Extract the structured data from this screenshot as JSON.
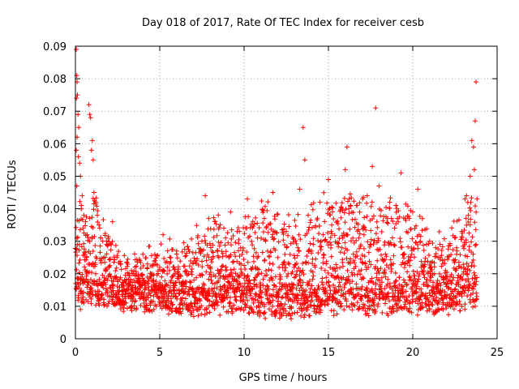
{
  "chart_data": {
    "type": "scatter",
    "title": "Day 018 of 2017, Rate Of TEC Index for receiver cesb",
    "xlabel": "GPS time / hours",
    "ylabel": "ROTI / TECUs",
    "xlim": [
      0,
      25
    ],
    "ylim": [
      0,
      0.09
    ],
    "xticks": [
      0,
      5,
      10,
      15,
      20,
      25
    ],
    "yticks": [
      0,
      0.01,
      0.02,
      0.03,
      0.04,
      0.05,
      0.06,
      0.07,
      0.08,
      0.09
    ],
    "xtick_labels": [
      "0",
      "5",
      "10",
      "15",
      "20",
      "25"
    ],
    "ytick_labels": [
      "0",
      "0.01",
      "0.02",
      "0.03",
      "0.04",
      "0.05",
      "0.06",
      "0.07",
      "0.08",
      "0.09"
    ],
    "grid": true,
    "marker": "plus",
    "marker_color": "#ff0000",
    "points": [
      [
        0.05,
        0.089
      ],
      [
        0.08,
        0.081
      ],
      [
        0.1,
        0.079
      ],
      [
        0.12,
        0.075
      ],
      [
        0.06,
        0.074
      ],
      [
        0.15,
        0.069
      ],
      [
        0.2,
        0.065
      ],
      [
        0.1,
        0.062
      ],
      [
        0.05,
        0.058
      ],
      [
        0.18,
        0.056
      ],
      [
        0.25,
        0.054
      ],
      [
        0.3,
        0.05
      ],
      [
        0.08,
        0.047
      ],
      [
        0.4,
        0.044
      ],
      [
        0.35,
        0.041
      ],
      [
        0.5,
        0.038
      ],
      [
        0.6,
        0.036
      ],
      [
        0.45,
        0.034
      ],
      [
        0.7,
        0.032
      ],
      [
        0.8,
        0.072
      ],
      [
        0.85,
        0.069
      ],
      [
        0.9,
        0.068
      ],
      [
        1.0,
        0.061
      ],
      [
        0.95,
        0.058
      ],
      [
        1.05,
        0.055
      ],
      [
        1.1,
        0.045
      ],
      [
        1.2,
        0.042
      ],
      [
        1.3,
        0.038
      ],
      [
        1.4,
        0.035
      ],
      [
        1.5,
        0.031
      ],
      [
        0.3,
        0.009
      ],
      [
        0.5,
        0.011
      ],
      [
        0.7,
        0.014
      ],
      [
        1.0,
        0.017
      ],
      [
        1.2,
        0.02
      ],
      [
        1.5,
        0.024
      ],
      [
        2.0,
        0.022
      ],
      [
        2.2,
        0.036
      ],
      [
        2.5,
        0.018
      ],
      [
        2.8,
        0.013
      ],
      [
        3.0,
        0.011
      ],
      [
        3.3,
        0.015
      ],
      [
        3.6,
        0.009
      ],
      [
        4.0,
        0.026
      ],
      [
        4.2,
        0.012
      ],
      [
        4.5,
        0.016
      ],
      [
        4.8,
        0.01
      ],
      [
        5.0,
        0.022
      ],
      [
        5.2,
        0.032
      ],
      [
        5.5,
        0.013
      ],
      [
        5.8,
        0.017
      ],
      [
        6.0,
        0.027
      ],
      [
        6.3,
        0.011
      ],
      [
        6.6,
        0.02
      ],
      [
        6.9,
        0.008
      ],
      [
        7.2,
        0.024
      ],
      [
        7.5,
        0.03
      ],
      [
        7.7,
        0.044
      ],
      [
        7.9,
        0.037
      ],
      [
        8.2,
        0.014
      ],
      [
        8.5,
        0.025
      ],
      [
        8.8,
        0.034
      ],
      [
        9.0,
        0.019
      ],
      [
        9.2,
        0.039
      ],
      [
        9.5,
        0.012
      ],
      [
        9.8,
        0.028
      ],
      [
        10.0,
        0.016
      ],
      [
        10.2,
        0.043
      ],
      [
        10.5,
        0.022
      ],
      [
        10.8,
        0.031
      ],
      [
        11.0,
        0.011
      ],
      [
        11.2,
        0.037
      ],
      [
        11.5,
        0.018
      ],
      [
        11.7,
        0.045
      ],
      [
        12.0,
        0.025
      ],
      [
        12.3,
        0.009
      ],
      [
        12.5,
        0.033
      ],
      [
        12.8,
        0.02
      ],
      [
        13.0,
        0.013
      ],
      [
        13.3,
        0.046
      ],
      [
        13.5,
        0.065
      ],
      [
        13.6,
        0.055
      ],
      [
        13.8,
        0.038
      ],
      [
        14.0,
        0.027
      ],
      [
        14.2,
        0.015
      ],
      [
        14.5,
        0.042
      ],
      [
        14.8,
        0.021
      ],
      [
        15.0,
        0.049
      ],
      [
        15.2,
        0.035
      ],
      [
        15.5,
        0.012
      ],
      [
        15.8,
        0.028
      ],
      [
        16.0,
        0.052
      ],
      [
        16.1,
        0.059
      ],
      [
        16.3,
        0.041
      ],
      [
        16.5,
        0.024
      ],
      [
        16.8,
        0.031
      ],
      [
        17.0,
        0.016
      ],
      [
        17.3,
        0.044
      ],
      [
        17.6,
        0.053
      ],
      [
        17.8,
        0.071
      ],
      [
        18.0,
        0.047
      ],
      [
        18.3,
        0.02
      ],
      [
        18.5,
        0.037
      ],
      [
        18.8,
        0.013
      ],
      [
        19.0,
        0.041
      ],
      [
        19.3,
        0.051
      ],
      [
        19.5,
        0.026
      ],
      [
        19.8,
        0.018
      ],
      [
        20.0,
        0.039
      ],
      [
        20.3,
        0.046
      ],
      [
        20.5,
        0.022
      ],
      [
        20.8,
        0.01
      ],
      [
        21.0,
        0.03
      ],
      [
        21.3,
        0.014
      ],
      [
        21.5,
        0.025
      ],
      [
        21.8,
        0.009
      ],
      [
        22.0,
        0.019
      ],
      [
        22.3,
        0.012
      ],
      [
        22.6,
        0.028
      ],
      [
        22.9,
        0.033
      ],
      [
        23.1,
        0.043
      ],
      [
        23.3,
        0.038
      ],
      [
        23.4,
        0.05
      ],
      [
        23.5,
        0.061
      ],
      [
        23.6,
        0.059
      ],
      [
        23.65,
        0.052
      ],
      [
        23.7,
        0.067
      ],
      [
        23.75,
        0.079
      ],
      [
        23.8,
        0.013
      ],
      [
        23.7,
        0.01
      ]
    ],
    "bulk_band": [
      [
        0,
        0.01,
        0.04
      ],
      [
        1,
        0.01,
        0.045
      ],
      [
        2,
        0.008,
        0.03
      ],
      [
        3,
        0.008,
        0.022
      ],
      [
        4,
        0.008,
        0.022
      ],
      [
        5,
        0.008,
        0.025
      ],
      [
        6,
        0.007,
        0.026
      ],
      [
        7,
        0.006,
        0.03
      ],
      [
        8,
        0.007,
        0.036
      ],
      [
        9,
        0.007,
        0.035
      ],
      [
        10,
        0.007,
        0.035
      ],
      [
        11,
        0.006,
        0.04
      ],
      [
        12,
        0.006,
        0.038
      ],
      [
        13,
        0.006,
        0.035
      ],
      [
        14,
        0.006,
        0.04
      ],
      [
        15,
        0.007,
        0.044
      ],
      [
        16,
        0.007,
        0.045
      ],
      [
        17,
        0.007,
        0.042
      ],
      [
        18,
        0.007,
        0.04
      ],
      [
        19,
        0.007,
        0.04
      ],
      [
        20,
        0.007,
        0.04
      ],
      [
        21,
        0.007,
        0.03
      ],
      [
        22,
        0.007,
        0.028
      ],
      [
        23,
        0.008,
        0.04
      ],
      [
        23.8,
        0.009,
        0.045
      ]
    ]
  }
}
